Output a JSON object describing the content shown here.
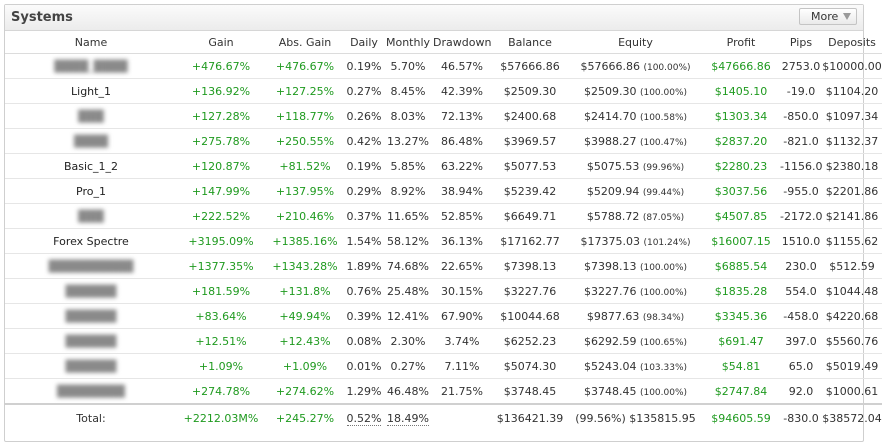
{
  "header": {
    "title": "Systems",
    "more_label": "More"
  },
  "columns": [
    "Name",
    "Gain",
    "Abs. Gain",
    "Daily",
    "Monthly",
    "Drawdown",
    "Balance",
    "Equity",
    "Profit",
    "Pips",
    "Deposits"
  ],
  "rows": [
    {
      "name": "████_████",
      "gain": "+476.67%",
      "abs_gain": "+476.67%",
      "daily": "0.19%",
      "monthly": "5.70%",
      "drawdown": "46.57%",
      "balance": "$57666.86",
      "equity": "$57666.86",
      "equity_pct": "(100.00%)",
      "profit": "$47666.86",
      "pips": "2753.0",
      "deposits": "$10000.00"
    },
    {
      "name": "Light_1",
      "gain": "+136.92%",
      "abs_gain": "+127.25%",
      "daily": "0.27%",
      "monthly": "8.45%",
      "drawdown": "42.39%",
      "balance": "$2509.30",
      "equity": "$2509.30",
      "equity_pct": "(100.00%)",
      "profit": "$1405.10",
      "pips": "-19.0",
      "deposits": "$1104.20"
    },
    {
      "name": "███",
      "gain": "+127.28%",
      "abs_gain": "+118.77%",
      "daily": "0.26%",
      "monthly": "8.03%",
      "drawdown": "72.13%",
      "balance": "$2400.68",
      "equity": "$2414.70",
      "equity_pct": "(100.58%)",
      "profit": "$1303.34",
      "pips": "-850.0",
      "deposits": "$1097.34"
    },
    {
      "name": "████",
      "gain": "+275.78%",
      "abs_gain": "+250.55%",
      "daily": "0.42%",
      "monthly": "13.27%",
      "drawdown": "86.48%",
      "balance": "$3969.57",
      "equity": "$3988.27",
      "equity_pct": "(100.47%)",
      "profit": "$2837.20",
      "pips": "-821.0",
      "deposits": "$1132.37"
    },
    {
      "name": "Basic_1_2",
      "gain": "+120.87%",
      "abs_gain": "+81.52%",
      "daily": "0.19%",
      "monthly": "5.85%",
      "drawdown": "63.22%",
      "balance": "$5077.53",
      "equity": "$5075.53",
      "equity_pct": "(99.96%)",
      "profit": "$2280.23",
      "pips": "-1156.0",
      "deposits": "$2380.18"
    },
    {
      "name": "Pro_1",
      "gain": "+147.99%",
      "abs_gain": "+137.95%",
      "daily": "0.29%",
      "monthly": "8.92%",
      "drawdown": "38.94%",
      "balance": "$5239.42",
      "equity": "$5209.94",
      "equity_pct": "(99.44%)",
      "profit": "$3037.56",
      "pips": "-955.0",
      "deposits": "$2201.86"
    },
    {
      "name": "███",
      "gain": "+222.52%",
      "abs_gain": "+210.46%",
      "daily": "0.37%",
      "monthly": "11.65%",
      "drawdown": "52.85%",
      "balance": "$6649.71",
      "equity": "$5788.72",
      "equity_pct": "(87.05%)",
      "profit": "$4507.85",
      "pips": "-2172.0",
      "deposits": "$2141.86"
    },
    {
      "name": "Forex Spectre",
      "gain": "+3195.09%",
      "abs_gain": "+1385.16%",
      "daily": "1.54%",
      "monthly": "58.12%",
      "drawdown": "36.13%",
      "balance": "$17162.77",
      "equity": "$17375.03",
      "equity_pct": "(101.24%)",
      "profit": "$16007.15",
      "pips": "1510.0",
      "deposits": "$1155.62"
    },
    {
      "name": "██████████",
      "gain": "+1377.35%",
      "abs_gain": "+1343.28%",
      "daily": "1.89%",
      "monthly": "74.68%",
      "drawdown": "22.65%",
      "balance": "$7398.13",
      "equity": "$7398.13",
      "equity_pct": "(100.00%)",
      "profit": "$6885.54",
      "pips": "230.0",
      "deposits": "$512.59"
    },
    {
      "name": "██████",
      "gain": "+181.59%",
      "abs_gain": "+131.8%",
      "daily": "0.76%",
      "monthly": "25.48%",
      "drawdown": "30.15%",
      "balance": "$3227.76",
      "equity": "$3227.76",
      "equity_pct": "(100.00%)",
      "profit": "$1835.28",
      "pips": "554.0",
      "deposits": "$1044.48"
    },
    {
      "name": "██████",
      "gain": "+83.64%",
      "abs_gain": "+49.94%",
      "daily": "0.39%",
      "monthly": "12.41%",
      "drawdown": "67.90%",
      "balance": "$10044.68",
      "equity": "$9877.63",
      "equity_pct": "(98.34%)",
      "profit": "$3345.36",
      "pips": "-458.0",
      "deposits": "$4220.68"
    },
    {
      "name": "██████",
      "gain": "+12.51%",
      "abs_gain": "+12.43%",
      "daily": "0.08%",
      "monthly": "2.30%",
      "drawdown": "3.74%",
      "balance": "$6252.23",
      "equity": "$6292.59",
      "equity_pct": "(100.65%)",
      "profit": "$691.47",
      "pips": "397.0",
      "deposits": "$5560.76"
    },
    {
      "name": "██████",
      "gain": "+1.09%",
      "abs_gain": "+1.09%",
      "daily": "0.01%",
      "monthly": "0.27%",
      "drawdown": "7.11%",
      "balance": "$5074.30",
      "equity": "$5243.04",
      "equity_pct": "(103.33%)",
      "profit": "$54.81",
      "pips": "65.0",
      "deposits": "$5019.49"
    },
    {
      "name": "████████",
      "gain": "+274.78%",
      "abs_gain": "+274.62%",
      "daily": "1.29%",
      "monthly": "46.48%",
      "drawdown": "21.75%",
      "balance": "$3748.45",
      "equity": "$3748.45",
      "equity_pct": "(100.00%)",
      "profit": "$2747.84",
      "pips": "92.0",
      "deposits": "$1000.61"
    }
  ],
  "total": {
    "label": "Total:",
    "gain": "+2212.03M%",
    "abs_gain": "+245.27%",
    "daily": "0.52%",
    "monthly": "18.49%",
    "balance": "$136421.39",
    "equity": "(99.56%) $135815.95",
    "profit": "$94605.59",
    "pips": "-830.0",
    "deposits": "$38572.04"
  },
  "colors": {
    "positive": "#1f9a1f",
    "text": "#333333",
    "border": "#cfcfcf"
  },
  "blurred_rows": [
    0,
    2,
    3,
    6,
    8,
    9,
    10,
    11,
    12,
    13
  ]
}
